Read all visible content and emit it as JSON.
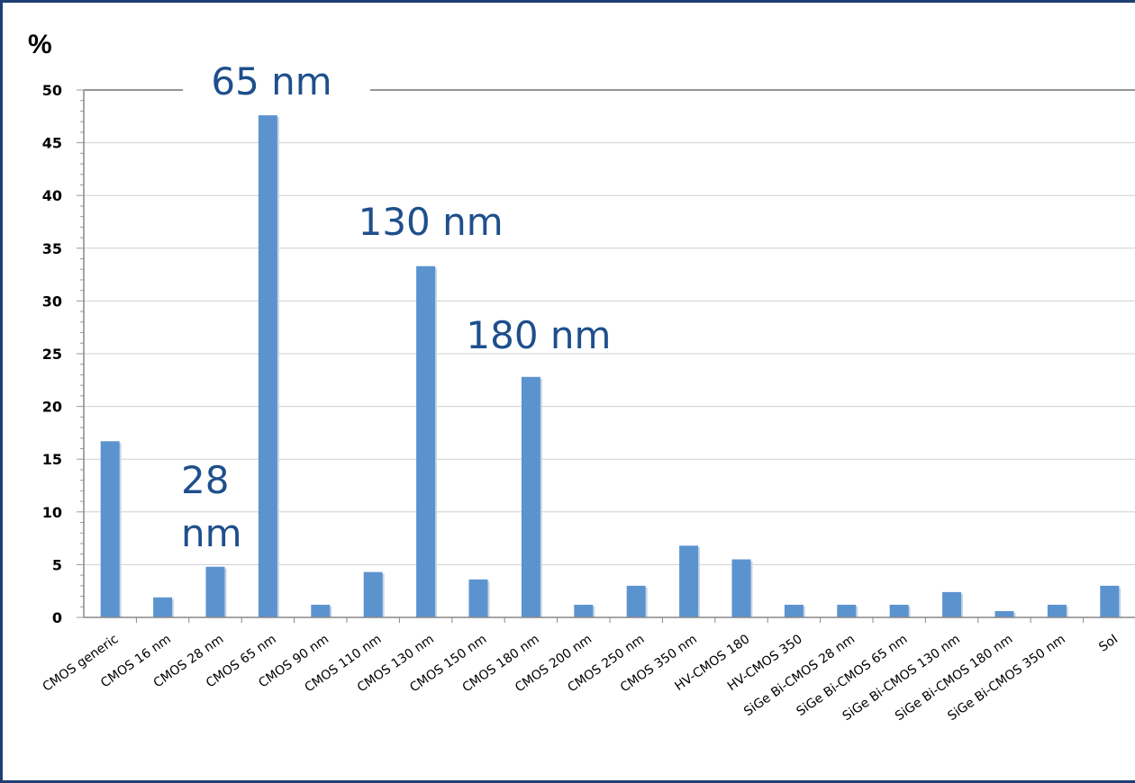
{
  "chart_data": {
    "type": "bar",
    "ylabel": "%",
    "ylim": [
      0,
      50
    ],
    "yticks": [
      0,
      5,
      10,
      15,
      20,
      25,
      30,
      35,
      40,
      45,
      50
    ],
    "categories": [
      "CMOS generic",
      "CMOS 16 nm",
      "CMOS 28 nm",
      "CMOS 65 nm",
      "CMOS 90 nm",
      "CMOS 110 nm",
      "CMOS 130 nm",
      "CMOS 150 nm",
      "CMOS 180 nm",
      "CMOS 200 nm",
      "CMOS 250 nm",
      "CMOS 350 nm",
      "HV-CMOS 180",
      "HV-CMOS 350",
      "SiGe Bi-CMOS 28 nm",
      "SiGe Bi-CMOS 65 nm",
      "SiGe Bi-CMOS 130 nm",
      "SiGe Bi-CMOS 180 nm",
      "SiGe Bi-CMOS 350 nm",
      "SoI"
    ],
    "values": [
      16.7,
      1.9,
      4.8,
      47.6,
      1.2,
      4.3,
      33.3,
      3.6,
      22.8,
      1.2,
      3.0,
      6.8,
      5.5,
      1.2,
      1.2,
      1.2,
      2.4,
      0.6,
      1.2,
      3.0
    ],
    "grid": true,
    "bar_color": "#5b93cf",
    "callout_color": "#1e4f8c",
    "annotations": [
      {
        "text": "65 nm",
        "category": "CMOS 65 nm"
      },
      {
        "text": "130 nm",
        "category": "CMOS 130 nm"
      },
      {
        "text": "180 nm",
        "category": "CMOS 180 nm"
      },
      {
        "lines": [
          "28",
          "nm"
        ],
        "category": "CMOS 28 nm"
      }
    ]
  }
}
